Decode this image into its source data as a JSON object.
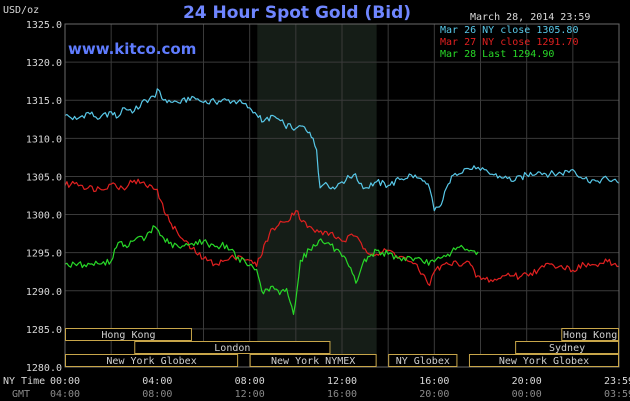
{
  "header": {
    "unit_label": "USD/oz",
    "title": "24 Hour Spot Gold (Bid)",
    "date_time": "March 28, 2014 23:59",
    "website": "www.kitco.com"
  },
  "colors": {
    "background": "#000000",
    "grid": "#3a3a3a",
    "session_shade": "#151d17",
    "box_border": "#c8a64a",
    "mar26": "#58c8e8",
    "mar27": "#e02020",
    "mar28": "#28d828"
  },
  "axis_labels": {
    "ny_time": "NY Time",
    "gmt": "GMT"
  },
  "sessions": [
    {
      "name": "Hong Kong",
      "start": 0,
      "end": 5.5,
      "row": 0
    },
    {
      "name": "Hong Kong",
      "start": 21.5,
      "end": 24,
      "row": 0
    },
    {
      "name": "London",
      "start": 3,
      "end": 11.5,
      "row": 1
    },
    {
      "name": "Sydney",
      "start": 19.5,
      "end": 24,
      "row": 1
    },
    {
      "name": "New York Globex",
      "start": 0,
      "end": 7.5,
      "row": 2
    },
    {
      "name": "New York NYMEX",
      "start": 8,
      "end": 13.5,
      "row": 2
    },
    {
      "name": "NY Globex",
      "start": 14,
      "end": 17,
      "row": 2
    },
    {
      "name": "New York Globex",
      "start": 17.5,
      "end": 24,
      "row": 2
    }
  ],
  "chart_data": {
    "type": "line",
    "title": "24 Hour Spot Gold (Bid)",
    "ylabel": "USD/oz",
    "ylim": [
      1280,
      1325
    ],
    "yticks": [
      "1325.0",
      "1320.0",
      "1315.0",
      "1310.0",
      "1305.0",
      "1300.0",
      "1295.0",
      "1290.0",
      "1285.0",
      "1280.0"
    ],
    "ytick_values": [
      1325,
      1320,
      1315,
      1310,
      1305,
      1300,
      1295,
      1290,
      1285,
      1280
    ],
    "xlim": [
      0,
      24
    ],
    "xticks_ny": [
      "00:00",
      "04:00",
      "08:00",
      "12:00",
      "16:00",
      "20:00",
      "23:59"
    ],
    "xticks_gmt": [
      "04:00",
      "08:00",
      "12:00",
      "16:00",
      "20:00",
      "00:00",
      "03:59"
    ],
    "xtick_values": [
      0,
      4,
      8,
      12,
      16,
      20,
      24
    ],
    "shaded_session": [
      8.33,
      13.5
    ],
    "grid": true,
    "legend_position": "top-right",
    "series": [
      {
        "name": "Mar 26 NY close 1305.80",
        "color": "#58c8e8",
        "x": [
          0,
          0.5,
          1,
          1.5,
          2,
          2.3,
          2.5,
          3,
          3.5,
          3.9,
          4,
          4.2,
          4.5,
          5,
          5.5,
          6,
          6.5,
          7,
          7.5,
          8,
          8.3,
          8.6,
          9,
          9.5,
          10,
          10.3,
          10.6,
          10.9,
          11.05,
          11.3,
          11.6,
          12,
          12.5,
          13,
          13.5,
          14,
          14.5,
          15,
          15.5,
          15.8,
          16,
          16.3,
          16.6,
          16.9,
          17.3,
          17.8,
          18,
          18.5,
          19,
          19.5,
          20,
          20.5,
          21,
          21.5,
          22,
          22.5,
          23,
          23.5,
          24
        ],
        "y": [
          1313,
          1312.5,
          1313.4,
          1312.6,
          1313.5,
          1312.8,
          1314,
          1313.6,
          1315,
          1315.4,
          1316.5,
          1315.2,
          1315,
          1314.6,
          1315.5,
          1314.7,
          1314.8,
          1315,
          1314.8,
          1314,
          1313.1,
          1312.2,
          1313,
          1311.8,
          1311.3,
          1311.6,
          1310.8,
          1308.5,
          1303.5,
          1304.2,
          1303.6,
          1304.3,
          1305.2,
          1303.5,
          1304.3,
          1303.8,
          1304.6,
          1305.2,
          1304.4,
          1303.4,
          1300.5,
          1301.3,
          1304,
          1305.4,
          1306,
          1306,
          1305.8,
          1305.3,
          1304.8,
          1304.5,
          1305.2,
          1305.6,
          1305.3,
          1305.4,
          1305.9,
          1304.7,
          1304.4,
          1304.7,
          1304.1
        ]
      },
      {
        "name": "Mar 27 NY close 1291.70",
        "color": "#e02020",
        "x": [
          0,
          0.5,
          1,
          1.5,
          2,
          2.5,
          3,
          3.5,
          4,
          4.3,
          4.6,
          5,
          5.5,
          6,
          6.5,
          7,
          7.5,
          8,
          8.3,
          8.7,
          9,
          9.5,
          10,
          10.5,
          11,
          11.5,
          12,
          12.5,
          13,
          13.5,
          14,
          14.5,
          15,
          15.5,
          15.8,
          16,
          16.3,
          16.6,
          17,
          17.5,
          17.8,
          18.2,
          18.7,
          19.2,
          19.7,
          20,
          20.5,
          21,
          21.5,
          22,
          22.5,
          23,
          23.5,
          24
        ],
        "y": [
          1303.8,
          1304.2,
          1303.5,
          1303.4,
          1304,
          1303.5,
          1304.5,
          1303.8,
          1303.3,
          1300.3,
          1298.8,
          1297,
          1295.5,
          1294.2,
          1293.5,
          1294,
          1294.6,
          1294,
          1293.2,
          1296.5,
          1298.2,
          1299,
          1300.5,
          1298.3,
          1297.7,
          1297.6,
          1296.5,
          1297.2,
          1295.5,
          1294.8,
          1295.3,
          1294.5,
          1293.8,
          1292.2,
          1290.7,
          1292.5,
          1293.3,
          1293.5,
          1293.6,
          1293.8,
          1291.8,
          1291.5,
          1291.4,
          1292.3,
          1291.8,
          1292.2,
          1292.7,
          1293.5,
          1293.3,
          1292.7,
          1293.4,
          1293.4,
          1293.8,
          1293.2
        ]
      },
      {
        "name": "Mar 28 Last 1294.90",
        "color": "#28d828",
        "x": [
          0,
          0.5,
          1,
          1.5,
          2,
          2.3,
          2.6,
          3,
          3.5,
          3.9,
          4.2,
          4.5,
          5,
          5.5,
          6,
          6.5,
          7,
          7.5,
          7.9,
          8.3,
          8.6,
          9,
          9.3,
          9.6,
          9.9,
          10.2,
          10.6,
          11,
          11.5,
          12,
          12.3,
          12.6,
          12.9,
          13.2,
          13.5,
          14,
          14.5,
          15,
          15.5,
          16,
          16.5,
          17,
          17.5,
          17.9
        ],
        "y": [
          1293.5,
          1293.3,
          1293.6,
          1293.5,
          1293.9,
          1296.3,
          1296,
          1296.6,
          1297,
          1298.4,
          1297.2,
          1296.2,
          1295.6,
          1296.2,
          1296.5,
          1295.8,
          1296,
          1294.4,
          1293.3,
          1292.8,
          1289.6,
          1290.6,
          1289.5,
          1290.3,
          1286.9,
          1294,
          1295.4,
          1296.6,
          1296,
          1294.5,
          1293.2,
          1291,
          1293.6,
          1294.5,
          1295.3,
          1294.8,
          1294.3,
          1294.3,
          1293.8,
          1293.8,
          1294.5,
          1295.7,
          1295.2,
          1295.1
        ]
      }
    ]
  }
}
